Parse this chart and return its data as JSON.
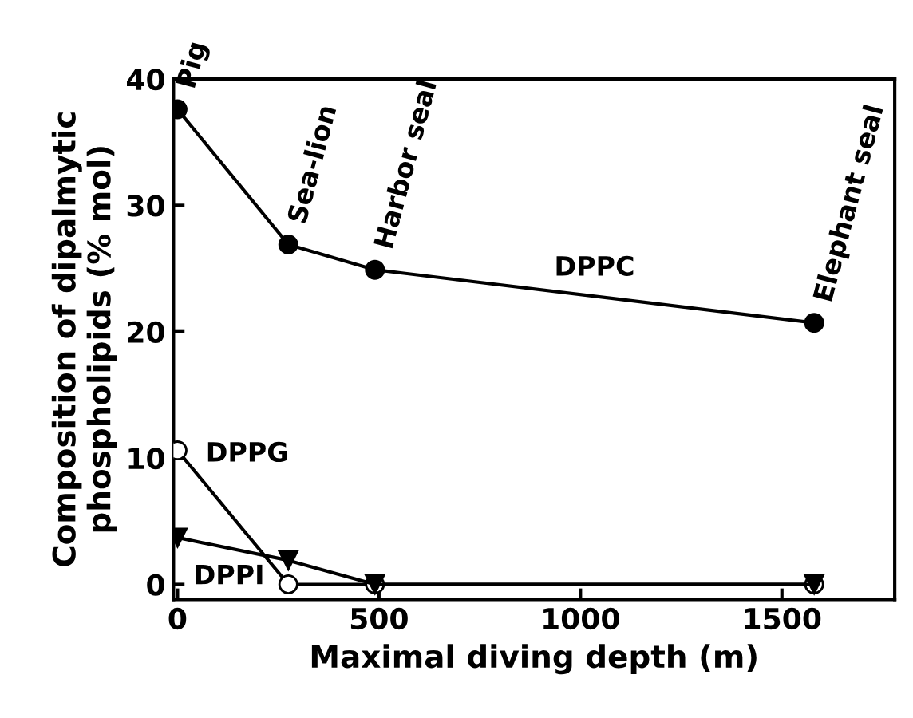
{
  "chart_data": {
    "type": "line",
    "xlabel": "Maximal diving depth (m)",
    "ylabel": "Composition of dipalmytic\nphospholipids (% mol)",
    "x": [
      0,
      275,
      490,
      1580
    ],
    "series": [
      {
        "name": "DPPC",
        "color": "#000000",
        "values": [
          37.6,
          26.9,
          24.9,
          20.7
        ],
        "marker": "circle"
      },
      {
        "name": "DPPG",
        "color": "#ffffff",
        "values": [
          10.6,
          0,
          0,
          0
        ],
        "marker": "circle"
      },
      {
        "name": "DPPI",
        "color": "#000000",
        "values": [
          3.7,
          1.9,
          0,
          0
        ],
        "marker": "triangle"
      }
    ],
    "annotations": [
      {
        "text": "Pig",
        "x": 0,
        "y": 37.6
      },
      {
        "text": "Sea-lion",
        "x": 275,
        "y": 26.9
      },
      {
        "text": "Harbor seal",
        "x": 490,
        "y": 24.9
      },
      {
        "text": "Elephant seal",
        "x": 1580,
        "y": 20.7
      }
    ],
    "xlim": [
      -10,
      1780
    ],
    "ylim": [
      -1.2,
      40
    ],
    "xticks": [
      0,
      500,
      1000,
      1500
    ],
    "yticks": [
      0,
      10,
      20,
      30,
      40
    ],
    "grid": false,
    "legend": false,
    "line_style": "solid"
  }
}
